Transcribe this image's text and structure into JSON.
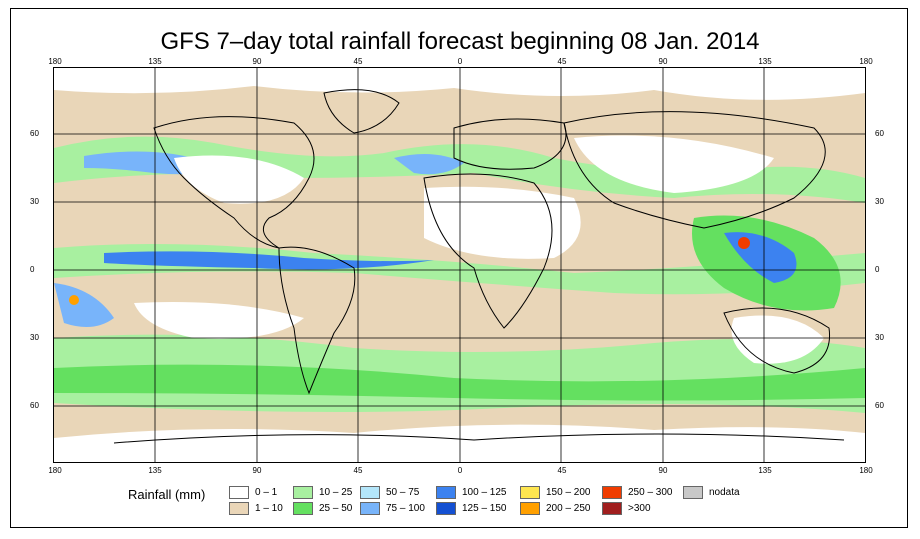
{
  "title": "GFS 7–day total rainfall forecast beginning 08 Jan. 2014",
  "lon_ticks": [
    "180",
    "135",
    "90",
    "45",
    "0",
    "45",
    "90",
    "135",
    "180"
  ],
  "lat_ticks": [
    "60",
    "30",
    "0",
    "30",
    "60"
  ],
  "legend": {
    "title": "Rainfall (mm)",
    "items": [
      {
        "label": "0 – 1",
        "color": "#ffffff"
      },
      {
        "label": "1 – 10",
        "color": "#ead6b8"
      },
      {
        "label": "10 – 25",
        "color": "#a8f0a0"
      },
      {
        "label": "25 – 50",
        "color": "#64e060"
      },
      {
        "label": "50 – 75",
        "color": "#b4e6fa"
      },
      {
        "label": "75 – 100",
        "color": "#78b4fa"
      },
      {
        "label": "100 – 125",
        "color": "#3c82f0"
      },
      {
        "label": "125 – 150",
        "color": "#1450d2"
      },
      {
        "label": "150 – 200",
        "color": "#ffe650"
      },
      {
        "label": "200 – 250",
        "color": "#ffa000"
      },
      {
        "label": "250 – 300",
        "color": "#f03c00"
      },
      {
        "label": ">300",
        "color": "#a01e1e"
      },
      {
        "label": "nodata",
        "color": "#c8c8c8"
      }
    ]
  }
}
